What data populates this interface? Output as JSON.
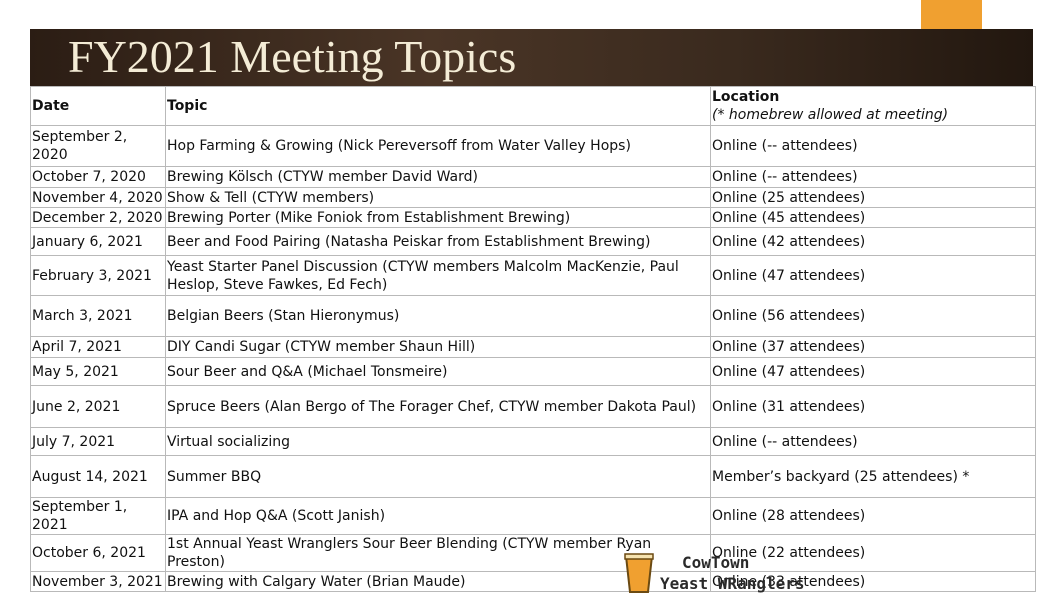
{
  "header": {
    "title": "FY2021 Meeting Topics",
    "accent_color": "#f0a030",
    "bar_color": "#3a2a1e"
  },
  "table": {
    "columns": {
      "date": "Date",
      "topic": "Topic",
      "location": "Location",
      "location_note": "(* homebrew allowed at meeting)"
    },
    "rows": [
      {
        "date": "September 2, 2020",
        "topic": "Hop Farming & Growing (Nick Pereversoff from Water Valley Hops)",
        "location": "Online (-- attendees)"
      },
      {
        "date": "October 7, 2020",
        "topic": "Brewing Kölsch (CTYW member David Ward)",
        "location": "Online (-- attendees)"
      },
      {
        "date": "November 4, 2020",
        "topic": "Show & Tell (CTYW members)",
        "location": "Online (25 attendees)"
      },
      {
        "date": "December 2, 2020",
        "topic": "Brewing Porter (Mike Foniok from Establishment Brewing)",
        "location": "Online (45 attendees)"
      },
      {
        "date": "January 6, 2021",
        "topic": "Beer and Food Pairing (Natasha Peiskar from Establishment Brewing)",
        "location": "Online (42 attendees)"
      },
      {
        "date": "February 3, 2021",
        "topic": "Yeast Starter Panel Discussion (CTYW members Malcolm MacKenzie, Paul Heslop, Steve Fawkes, Ed Fech)",
        "location": "Online (47 attendees)"
      },
      {
        "date": "March 3, 2021",
        "topic": "Belgian Beers (Stan Hieronymus)",
        "location": "Online (56 attendees)"
      },
      {
        "date": "April 7, 2021",
        "topic": "DIY Candi Sugar (CTYW member Shaun Hill)",
        "location": "Online (37 attendees)"
      },
      {
        "date": "May 5, 2021",
        "topic": "Sour Beer and Q&A (Michael Tonsmeire)",
        "location": "Online (47 attendees)"
      },
      {
        "date": "June 2, 2021",
        "topic": "Spruce Beers (Alan Bergo of The Forager Chef, CTYW member Dakota Paul)",
        "location": "Online (31 attendees)"
      },
      {
        "date": "July 7, 2021",
        "topic": "Virtual socializing",
        "location": "Online (-- attendees)"
      },
      {
        "date": "August 14, 2021",
        "topic": "Summer BBQ",
        "location": "Member’s backyard (25 attendees) *"
      },
      {
        "date": "September 1, 2021",
        "topic": "IPA and Hop Q&A (Scott Janish)",
        "location": "Online (28 attendees)"
      },
      {
        "date": "October 6, 2021",
        "topic": "1st Annual Yeast Wranglers Sour Beer Blending (CTYW member Ryan Preston)",
        "location": "Online (22 attendees)"
      },
      {
        "date": "November 3, 2021",
        "topic": "Brewing with Calgary Water (Brian Maude)",
        "location": "Online (33 attendees)"
      }
    ]
  },
  "logo": {
    "line1": "CowTown",
    "line2": "Yeast WRanglers",
    "icon": "beer-glass-icon"
  }
}
